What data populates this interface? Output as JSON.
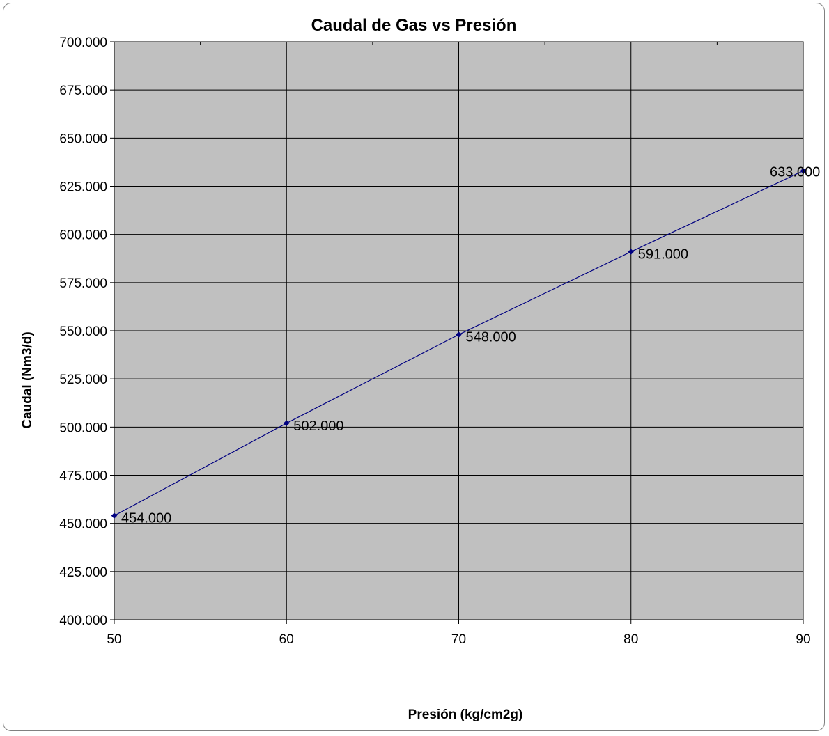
{
  "chart_data": {
    "type": "line",
    "title": "Caudal de Gas vs Presión",
    "xlabel": "Presión (kg/cm2g)",
    "ylabel": "Caudal (Nm3/d)",
    "x": [
      50,
      60,
      70,
      80,
      90
    ],
    "series": [
      {
        "values": [
          454000,
          502000,
          548000,
          591000,
          633000
        ],
        "labels": [
          "454.000",
          "502.000",
          "548.000",
          "591.000",
          "633.000"
        ]
      }
    ],
    "xlim": [
      50,
      90
    ],
    "ylim": [
      400000,
      700000
    ],
    "x_ticks": [
      "50",
      "60",
      "70",
      "80",
      "90"
    ],
    "y_ticks": [
      "400.000",
      "425.000",
      "450.000",
      "475.000",
      "500.000",
      "525.000",
      "550.000",
      "575.000",
      "600.000",
      "625.000",
      "650.000",
      "675.000",
      "700.000"
    ],
    "grid": true,
    "legend": "none",
    "colors": {
      "line": "#000080",
      "plot_background": "#c0c0c0",
      "gridline": "#000000"
    }
  }
}
